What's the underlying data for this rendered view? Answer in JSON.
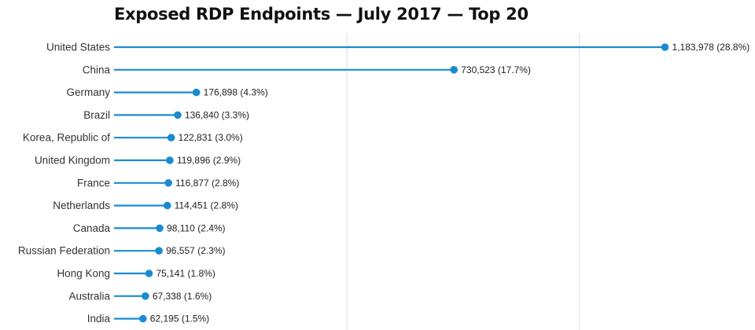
{
  "chart_data": {
    "type": "lollipop",
    "title": "Exposed RDP Endpoints — July 2017 — Top 20",
    "xlabel": "",
    "ylabel": "",
    "xlim": [
      0,
      1200000
    ],
    "gridlines_x": [
      500000,
      1000000
    ],
    "color": "#1a8bd0",
    "categories": [
      "United States",
      "China",
      "Germany",
      "Brazil",
      "Korea, Republic of",
      "United Kingdom",
      "France",
      "Netherlands",
      "Canada",
      "Russian Federation",
      "Hong Kong",
      "Australia",
      "India"
    ],
    "values": [
      1183978,
      730523,
      176898,
      136840,
      122831,
      119896,
      116877,
      114451,
      98110,
      96557,
      75141,
      67338,
      62195
    ],
    "data_labels": [
      "1,183,978 (28.8%)",
      "730,523 (17.7%)",
      "176,898 (4.3%)",
      "136,840 (3.3%)",
      "122,831 (3.0%)",
      "119,896 (2.9%)",
      "116,877 (2.8%)",
      "114,451 (2.8%)",
      "98,110 (2.4%)",
      "96,557 (2.3%)",
      "75,141 (1.8%)",
      "67,338 (1.6%)",
      "62,195 (1.5%)"
    ]
  }
}
